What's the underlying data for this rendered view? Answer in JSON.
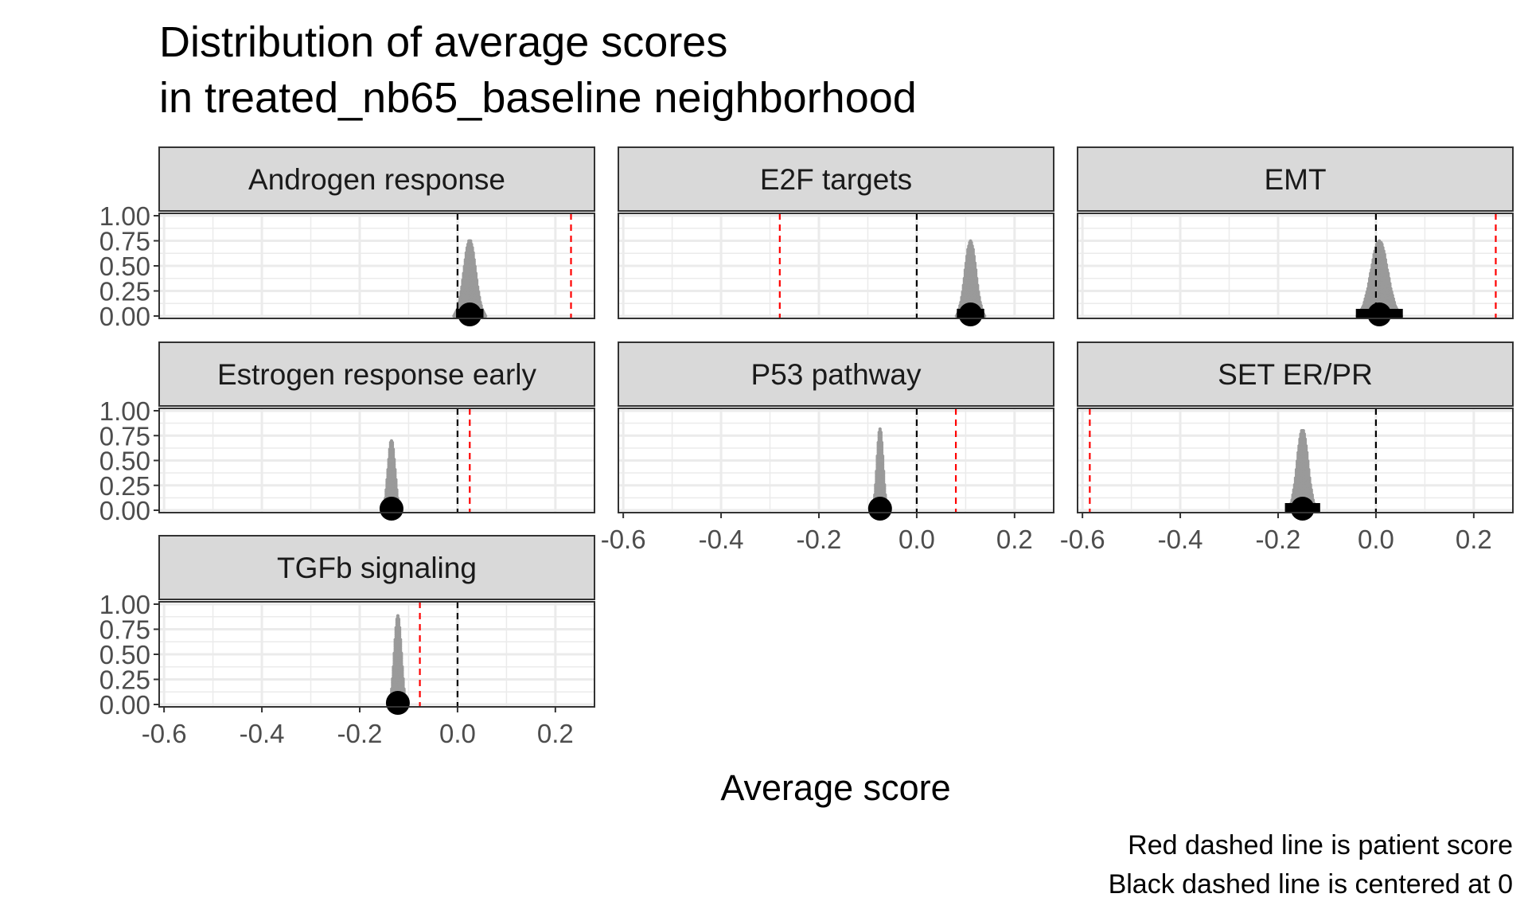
{
  "title_lines": [
    "Distribution of average scores",
    "in treated_nb65_baseline neighborhood"
  ],
  "xlabel": "Average score",
  "caption_lines": [
    "Red dashed line is patient score",
    "Black dashed line is centered at 0"
  ],
  "colors": {
    "dots": "#9a9a9a",
    "median_point": "#000000",
    "patient_line": "#ff0000",
    "zero_line": "#000000",
    "strip_fill": "#d9d9d9",
    "grid": "#ebebeb",
    "frame": "#333333"
  },
  "chart_data": {
    "type": "dotplot",
    "facet_layout": "3 columns, shared axes",
    "xlim": [
      -0.61,
      0.28
    ],
    "ylim": [
      0,
      1
    ],
    "x_ticks": [
      -0.6,
      -0.4,
      -0.2,
      0.0,
      0.2
    ],
    "x_tick_labels": [
      "-0.6",
      "-0.4",
      "-0.2",
      "0.0",
      "0.2"
    ],
    "y_ticks": [
      0,
      0.25,
      0.5,
      0.75,
      1
    ],
    "y_tick_labels": [
      "0.00",
      "0.25",
      "0.50",
      "0.75",
      "1.00"
    ],
    "grid": true,
    "panels": [
      {
        "label": "Androgen response",
        "patient_score": 0.232,
        "zero": 0,
        "center": 0.025,
        "spread": 0.012,
        "peak": 0.77,
        "point_halfwidth": 0.028
      },
      {
        "label": "E2F targets",
        "patient_score": -0.28,
        "zero": 0,
        "center": 0.11,
        "spread": 0.011,
        "peak": 0.76,
        "point_halfwidth": 0.028
      },
      {
        "label": "EMT",
        "patient_score": 0.245,
        "zero": 0,
        "center": 0.007,
        "spread": 0.017,
        "peak": 0.76,
        "point_halfwidth": 0.048
      },
      {
        "label": "Estrogen response early",
        "patient_score": 0.025,
        "zero": 0,
        "center": -0.135,
        "spread": 0.007,
        "peak": 0.72,
        "point_halfwidth": 0.02
      },
      {
        "label": "P53 pathway",
        "patient_score": 0.08,
        "zero": 0,
        "center": -0.075,
        "spread": 0.006,
        "peak": 0.84,
        "point_halfwidth": 0.02
      },
      {
        "label": "SET ER/PR",
        "patient_score": -0.585,
        "zero": 0,
        "center": -0.15,
        "spread": 0.011,
        "peak": 0.82,
        "point_halfwidth": 0.036
      },
      {
        "label": "TGFb signaling",
        "patient_score": -0.077,
        "zero": 0,
        "center": -0.122,
        "spread": 0.007,
        "peak": 0.9,
        "point_halfwidth": 0.02
      }
    ]
  }
}
